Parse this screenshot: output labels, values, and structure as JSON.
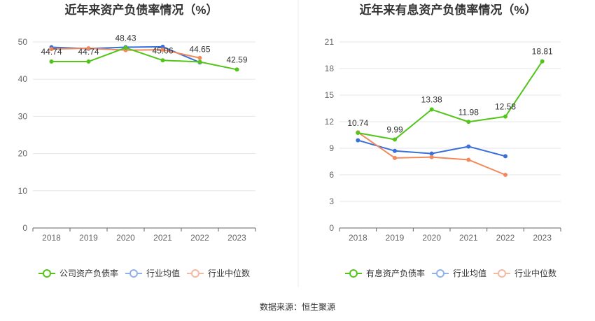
{
  "colors": {
    "green": "#52c41a",
    "blue": "#3a6fd8",
    "orange": "#f08a5d",
    "blue_light": "#8fb0ea",
    "orange_light": "#f5b8a0",
    "grid": "#e6e6e6",
    "axis": "#666666",
    "divider": "#e8e8e8"
  },
  "chart_data": [
    {
      "type": "line",
      "title": "近年来资产负债率情况（%）",
      "categories": [
        "2018",
        "2019",
        "2020",
        "2021",
        "2022",
        "2023"
      ],
      "ylim": [
        0,
        50
      ],
      "yticks": [
        "0",
        "10",
        "20",
        "30",
        "40",
        "50"
      ],
      "grid": true,
      "legend_position": "bottom",
      "series": [
        {
          "name": "公司资产负债率",
          "color": "#52c41a",
          "values": [
            44.74,
            44.74,
            48.43,
            45.06,
            44.65,
            42.59
          ],
          "labels": [
            "44.74",
            "44.74",
            "48.43",
            "45.06",
            "44.65",
            "42.59"
          ]
        },
        {
          "name": "行业均值",
          "color": "#3a6fd8",
          "values": [
            48.6,
            48.2,
            48.6,
            48.7,
            44.5,
            null
          ]
        },
        {
          "name": "行业中位数",
          "color": "#f08a5d",
          "values": [
            48.1,
            48.3,
            47.8,
            47.9,
            45.7,
            null
          ]
        }
      ]
    },
    {
      "type": "line",
      "title": "近年来有息资产负债率情况（%）",
      "categories": [
        "2018",
        "2019",
        "2020",
        "2021",
        "2022",
        "2023"
      ],
      "ylim": [
        0,
        21
      ],
      "yticks": [
        "0",
        "3",
        "6",
        "9",
        "12",
        "15",
        "18",
        "21"
      ],
      "grid": true,
      "legend_position": "bottom",
      "series": [
        {
          "name": "有息资产负债率",
          "color": "#52c41a",
          "values": [
            10.74,
            9.99,
            13.38,
            11.98,
            12.58,
            18.81
          ],
          "labels": [
            "10.74",
            "9.99",
            "13.38",
            "11.98",
            "12.58",
            "18.81"
          ]
        },
        {
          "name": "行业均值",
          "color": "#3a6fd8",
          "values": [
            9.9,
            8.7,
            8.4,
            9.2,
            8.1,
            null
          ]
        },
        {
          "name": "行业中位数",
          "color": "#f08a5d",
          "values": [
            10.8,
            7.9,
            8.0,
            7.7,
            6.0,
            null
          ]
        }
      ]
    }
  ],
  "source": "数据来源：恒生聚源"
}
